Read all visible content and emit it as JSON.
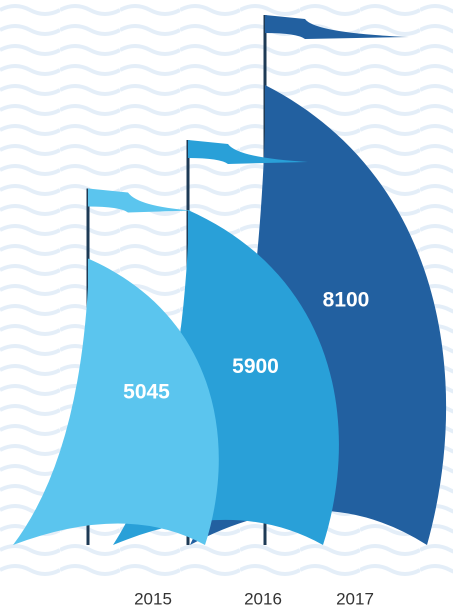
{
  "chart_data": {
    "type": "sail",
    "categories": [
      "2015",
      "2016",
      "2017"
    ],
    "values": [
      5045,
      5900,
      8100
    ],
    "colors": [
      "#5bc5ee",
      "#29a0d8",
      "#2260a0"
    ]
  }
}
